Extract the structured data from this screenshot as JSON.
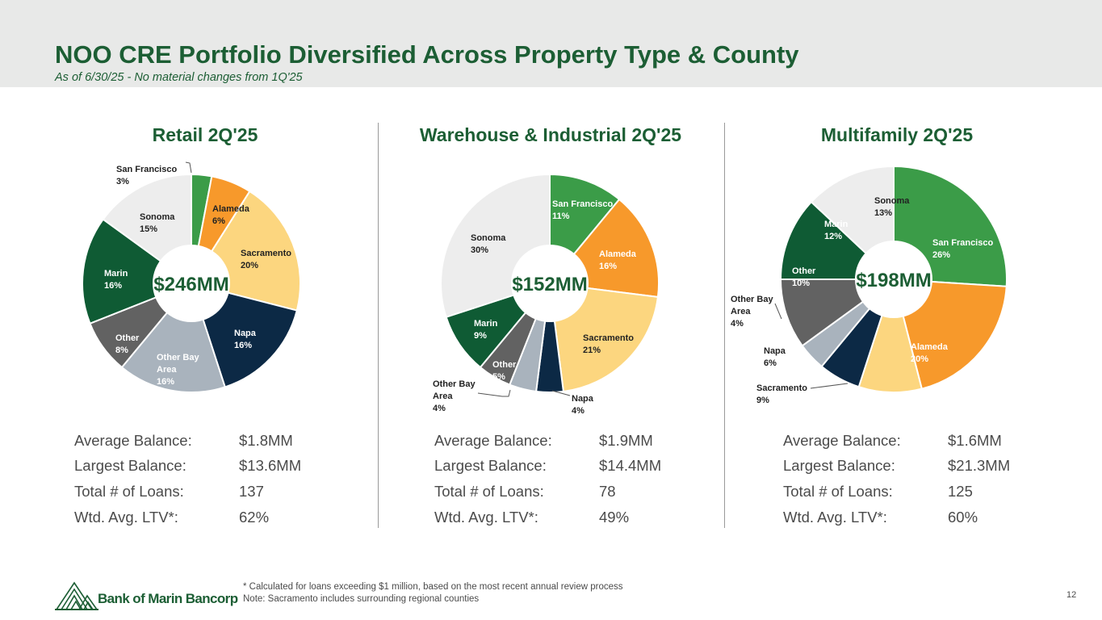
{
  "header": {
    "title": "NOO CRE Portfolio Diversified Across Property Type & County",
    "subtitle": "As of 6/30/25 - No material changes from 1Q'25"
  },
  "colors": {
    "san_francisco": "#3b9c48",
    "alameda": "#f7992b",
    "sacramento": "#fcd67f",
    "napa": "#0c2945",
    "other_bay_area": "#a9b3bd",
    "other": "#626262",
    "marin": "#0f5b34",
    "sonoma": "#ededed",
    "brand_green": "#1c5e34"
  },
  "chart_data": [
    {
      "type": "pie",
      "title": "Retail 2Q'25",
      "center_label": "$246MM",
      "slices": [
        {
          "name": "San Francisco",
          "value": 3,
          "pct_label": "3%",
          "color": "#3b9c48"
        },
        {
          "name": "Alameda",
          "value": 6,
          "pct_label": "6%",
          "color": "#f7992b"
        },
        {
          "name": "Sacramento",
          "value": 20,
          "pct_label": "20%",
          "color": "#fcd67f"
        },
        {
          "name": "Napa",
          "value": 16,
          "pct_label": "16%",
          "color": "#0c2945"
        },
        {
          "name": "Other Bay Area",
          "value": 16,
          "pct_label": "16%",
          "color": "#a9b3bd"
        },
        {
          "name": "Other",
          "value": 8,
          "pct_label": "8%",
          "color": "#626262"
        },
        {
          "name": "Marin",
          "value": 16,
          "pct_label": "16%",
          "color": "#0f5b34"
        },
        {
          "name": "Sonoma",
          "value": 15,
          "pct_label": "15%",
          "color": "#ededed"
        }
      ],
      "stats": [
        {
          "label": "Average Balance:",
          "value": "$1.8MM"
        },
        {
          "label": "Largest Balance:",
          "value": "$13.6MM"
        },
        {
          "label": "Total # of Loans:",
          "value": "137"
        },
        {
          "label": "Wtd. Avg. LTV*:",
          "value": "62%"
        }
      ]
    },
    {
      "type": "pie",
      "title": "Warehouse & Industrial 2Q'25",
      "center_label": "$152MM",
      "slices": [
        {
          "name": "San Francisco",
          "value": 11,
          "pct_label": "11%",
          "color": "#3b9c48"
        },
        {
          "name": "Alameda",
          "value": 16,
          "pct_label": "16%",
          "color": "#f7992b"
        },
        {
          "name": "Sacramento",
          "value": 21,
          "pct_label": "21%",
          "color": "#fcd67f"
        },
        {
          "name": "Napa",
          "value": 4,
          "pct_label": "4%",
          "color": "#0c2945"
        },
        {
          "name": "Other Bay Area",
          "value": 4,
          "pct_label": "4%",
          "color": "#a9b3bd"
        },
        {
          "name": "Other",
          "value": 5,
          "pct_label": "5%",
          "color": "#626262"
        },
        {
          "name": "Marin",
          "value": 9,
          "pct_label": "9%",
          "color": "#0f5b34"
        },
        {
          "name": "Sonoma",
          "value": 30,
          "pct_label": "30%",
          "color": "#ededed"
        }
      ],
      "stats": [
        {
          "label": "Average Balance:",
          "value": "$1.9MM"
        },
        {
          "label": "Largest Balance:",
          "value": "$14.4MM"
        },
        {
          "label": "Total # of Loans:",
          "value": "78"
        },
        {
          "label": "Wtd. Avg. LTV*:",
          "value": "49%"
        }
      ]
    },
    {
      "type": "pie",
      "title": "Multifamily 2Q'25",
      "center_label": "$198MM",
      "slices": [
        {
          "name": "San Francisco",
          "value": 26,
          "pct_label": "26%",
          "color": "#3b9c48"
        },
        {
          "name": "Alameda",
          "value": 20,
          "pct_label": "20%",
          "color": "#f7992b"
        },
        {
          "name": "Sacramento",
          "value": 9,
          "pct_label": "9%",
          "color": "#fcd67f"
        },
        {
          "name": "Napa",
          "value": 6,
          "pct_label": "6%",
          "color": "#0c2945"
        },
        {
          "name": "Other Bay Area",
          "value": 4,
          "pct_label": "4%",
          "color": "#a9b3bd"
        },
        {
          "name": "Other",
          "value": 10,
          "pct_label": "10%",
          "color": "#626262"
        },
        {
          "name": "Marin",
          "value": 12,
          "pct_label": "12%",
          "color": "#0f5b34"
        },
        {
          "name": "Sonoma",
          "value": 13,
          "pct_label": "13%",
          "color": "#ededed"
        }
      ],
      "stats": [
        {
          "label": "Average Balance:",
          "value": "$1.6MM"
        },
        {
          "label": "Largest Balance:",
          "value": "$21.3MM"
        },
        {
          "label": "Total # of Loans:",
          "value": "125"
        },
        {
          "label": "Wtd. Avg. LTV*:",
          "value": "60%"
        }
      ]
    }
  ],
  "footer": {
    "note1": "* Calculated for loans exceeding $1 million, based on the most recent annual review process",
    "note2": "Note: Sacramento includes surrounding regional counties",
    "page_number": "12",
    "logo_text": "Bank of Marin Bancorp"
  }
}
